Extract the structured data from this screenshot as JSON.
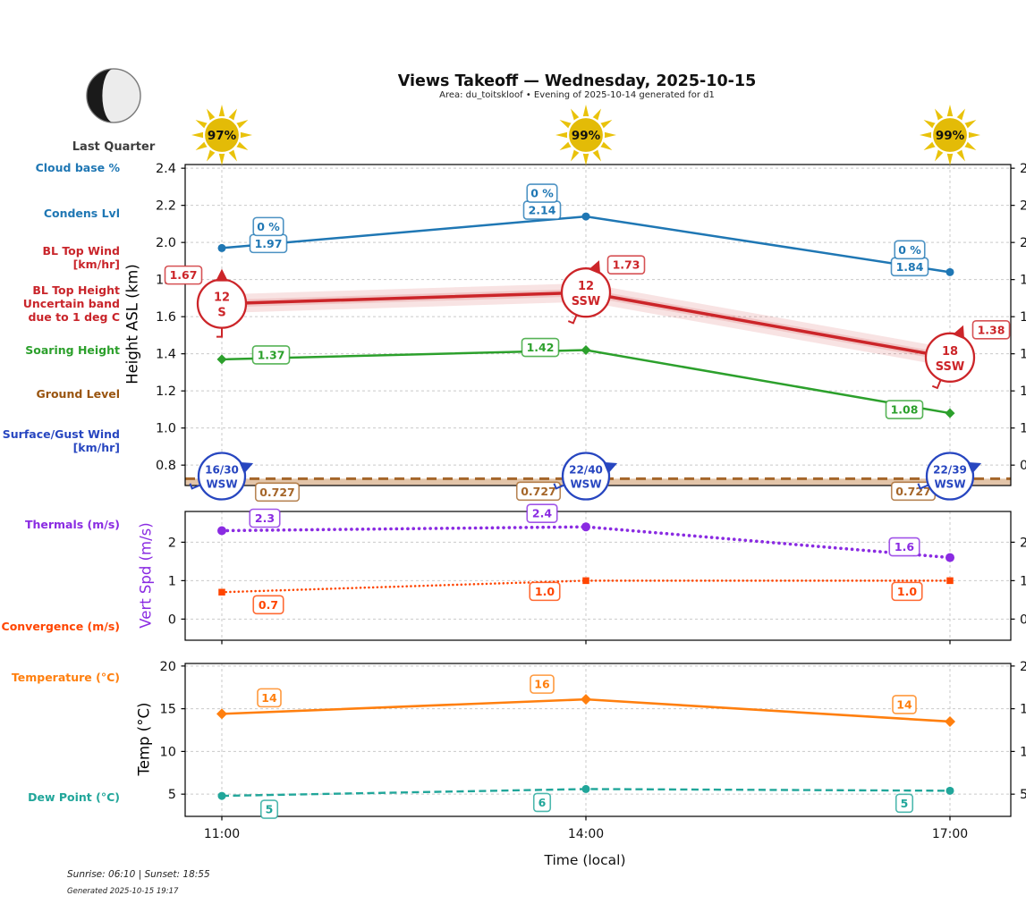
{
  "header": {
    "title": "Views Takeoff — Wednesday, 2025-10-15",
    "subtitle": "Area: du_toitskloof • Evening of 2025-10-14 generated for d1",
    "moon": {
      "phase": "Last Quarter"
    },
    "suns": [
      {
        "pct": "97%"
      },
      {
        "pct": "99%"
      },
      {
        "pct": "99%"
      }
    ]
  },
  "left_labels": [
    {
      "id": "cloud-base",
      "text": "Cloud base %",
      "color": "#1f77b4"
    },
    {
      "id": "condens-lvl",
      "text": "Condens Lvl",
      "color": "#1f77b4"
    },
    {
      "id": "bl-top-wind",
      "text": "BL Top Wind\n[km/hr]",
      "color": "#c9252b"
    },
    {
      "id": "bl-top-height",
      "text": "BL Top Height\nUncertain band\ndue to 1 deg C",
      "color": "#c9252b"
    },
    {
      "id": "soaring-height",
      "text": "Soaring Height",
      "color": "#2ca02c"
    },
    {
      "id": "ground-level",
      "text": "Ground Level",
      "color": "#99540f"
    },
    {
      "id": "surface-gust-wind",
      "text": "Surface/Gust Wind\n[km/hr]",
      "color": "#2746c0"
    },
    {
      "id": "thermals",
      "text": "Thermals (m/s)",
      "color": "#8a2be2"
    },
    {
      "id": "convergence",
      "text": "Convergence (m/s)",
      "color": "#ff4500"
    },
    {
      "id": "temperature",
      "text": "Temperature (°C)",
      "color": "#ff7f0e"
    },
    {
      "id": "dew-point",
      "text": "Dew Point (°C)",
      "color": "#21a69a"
    }
  ],
  "chart_data": [
    {
      "type": "line",
      "ylabel": "Height ASL (km)",
      "ylabel_color": "#000000",
      "x": [
        "11:00",
        "14:00",
        "17:00"
      ],
      "ylim": [
        0.69,
        2.42
      ],
      "yticks": [
        0.8,
        1.0,
        1.2,
        1.4,
        1.6,
        1.8,
        2.0,
        2.2,
        2.4
      ],
      "ytick_labels": [
        "0.8",
        "1.0",
        "1.2",
        "1.4",
        "1.6",
        "1.8",
        "2.0",
        "2.2",
        "2.4"
      ],
      "grid": true,
      "series": [
        {
          "name": "Condens Lvl",
          "color": "#1f77b4",
          "marker": "circle",
          "msize": 4.5,
          "style": "solid",
          "lw": 2.5,
          "values": [
            1.97,
            2.14,
            1.84
          ],
          "point_labels": [
            "1.97",
            "2.14",
            "1.84"
          ],
          "cloud_base_pct": [
            "0 %",
            "0 %",
            "0 %"
          ]
        },
        {
          "name": "BL Top Height",
          "color": "#cc2529",
          "marker": "none",
          "style": "solid",
          "lw": 3.5,
          "values": [
            1.67,
            1.73,
            1.38
          ],
          "point_labels": [
            "1.67",
            "1.73",
            "1.38"
          ],
          "band": 0.05,
          "wind": [
            {
              "speed": "12",
              "dir": "S"
            },
            {
              "speed": "12",
              "dir": "SSW"
            },
            {
              "speed": "18",
              "dir": "SSW"
            }
          ]
        },
        {
          "name": "Soaring Height",
          "color": "#2ca02c",
          "marker": "diamond",
          "msize": 5.5,
          "style": "solid",
          "lw": 2.5,
          "values": [
            1.37,
            1.42,
            1.08
          ],
          "point_labels": [
            "1.37",
            "1.42",
            "1.08"
          ]
        },
        {
          "name": "Ground Level",
          "color": "#a5662a",
          "fill": "#d9b28c",
          "marker": "none",
          "style": "ground-dash",
          "lw": 3,
          "values": [
            0.727,
            0.727,
            0.727
          ],
          "point_labels": [
            "0.727",
            "0.727",
            "0.727"
          ]
        }
      ],
      "surface_wind": {
        "color": "#2746c0",
        "points": [
          {
            "speed": "16/30",
            "dir": "WSW"
          },
          {
            "speed": "22/40",
            "dir": "WSW"
          },
          {
            "speed": "22/39",
            "dir": "WSW"
          }
        ]
      }
    },
    {
      "type": "line",
      "ylabel": "Vert Spd (m/s)",
      "ylabel_color": "#8a2be2",
      "x": [
        "11:00",
        "14:00",
        "17:00"
      ],
      "ylim": [
        -0.55,
        2.8
      ],
      "yticks": [
        0,
        1,
        2
      ],
      "ytick_labels": [
        "0",
        "1",
        "2"
      ],
      "grid": true,
      "series": [
        {
          "name": "Thermals",
          "color": "#8a2be2",
          "marker": "circle",
          "msize": 5,
          "style": "dotted",
          "lw": 3.6,
          "values": [
            2.3,
            2.4,
            1.6
          ],
          "point_labels": [
            "2.3",
            "2.4",
            "1.6"
          ]
        },
        {
          "name": "Convergence",
          "color": "#ff4500",
          "marker": "square",
          "msize": 7.5,
          "style": "dotted-fine",
          "lw": 2.6,
          "values": [
            0.7,
            1.0,
            1.0
          ],
          "point_labels": [
            "0.7",
            "1.0",
            "1.0"
          ]
        }
      ]
    },
    {
      "type": "line",
      "ylabel": "Temp (°C)",
      "ylabel_color": "#000000",
      "x": [
        "11:00",
        "14:00",
        "17:00"
      ],
      "xlabel": "Time (local)",
      "ylim": [
        2.4,
        20.3
      ],
      "yticks": [
        5,
        10,
        15,
        20
      ],
      "ytick_labels": [
        "5",
        "10",
        "15",
        "20"
      ],
      "grid": true,
      "series": [
        {
          "name": "Temperature",
          "color": "#ff7f0e",
          "marker": "diamond",
          "msize": 6,
          "style": "solid",
          "lw": 2.6,
          "values": [
            14.4,
            16.1,
            13.5
          ],
          "point_labels": [
            "14",
            "16",
            "14"
          ]
        },
        {
          "name": "Dew Point",
          "color": "#21a69a",
          "marker": "circle",
          "msize": 4.5,
          "style": "dashed",
          "lw": 2.4,
          "values": [
            4.8,
            5.6,
            5.4
          ],
          "point_labels": [
            "5",
            "6",
            "5"
          ]
        }
      ]
    }
  ],
  "footer": {
    "sun_times": "Sunrise: 06:10 | Sunset: 18:55",
    "generated": "Generated 2025-10-15 19:17"
  }
}
